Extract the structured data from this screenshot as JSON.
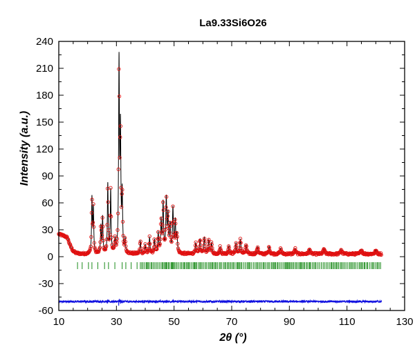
{
  "chart_data": {
    "type": "scatter",
    "title": "La9.33Si6O26",
    "xlabel": "2θ (°)",
    "ylabel": "Intensity (a.u.)",
    "xlim": [
      10,
      130
    ],
    "ylim": [
      -60,
      240
    ],
    "xticks": [
      10,
      30,
      50,
      70,
      90,
      110,
      130
    ],
    "yticks": [
      -60,
      -30,
      0,
      30,
      60,
      90,
      120,
      150,
      180,
      210,
      240
    ],
    "grid": false,
    "legend": "none",
    "x_range_measured": [
      10,
      122
    ],
    "background_points": [
      [
        10,
        25
      ],
      [
        11,
        24
      ],
      [
        12,
        23
      ],
      [
        13,
        21
      ],
      [
        14,
        12
      ],
      [
        15,
        6
      ],
      [
        16,
        4
      ],
      [
        18,
        3
      ],
      [
        20,
        3
      ],
      [
        25,
        3
      ],
      [
        30,
        3
      ],
      [
        40,
        3
      ],
      [
        50,
        3
      ],
      [
        60,
        3
      ],
      [
        70,
        3
      ],
      [
        80,
        3
      ],
      [
        90,
        3
      ],
      [
        100,
        3
      ],
      [
        110,
        3
      ],
      [
        122,
        3
      ]
    ],
    "peaks": [
      {
        "pos": 21.5,
        "height": 61
      },
      {
        "pos": 22.0,
        "height": 50
      },
      {
        "pos": 24.6,
        "height": 30
      },
      {
        "pos": 25.2,
        "height": 40
      },
      {
        "pos": 27.0,
        "height": 77
      },
      {
        "pos": 28.0,
        "height": 70
      },
      {
        "pos": 29.5,
        "height": 14
      },
      {
        "pos": 30.9,
        "height": 210
      },
      {
        "pos": 31.4,
        "height": 130
      },
      {
        "pos": 32.0,
        "height": 63
      },
      {
        "pos": 33.0,
        "height": 14
      },
      {
        "pos": 38.3,
        "height": 14
      },
      {
        "pos": 40.0,
        "height": 10
      },
      {
        "pos": 41.5,
        "height": 18
      },
      {
        "pos": 43.2,
        "height": 15
      },
      {
        "pos": 44.5,
        "height": 22
      },
      {
        "pos": 45.5,
        "height": 35
      },
      {
        "pos": 46.2,
        "height": 55
      },
      {
        "pos": 47.3,
        "height": 59
      },
      {
        "pos": 47.9,
        "height": 40
      },
      {
        "pos": 48.6,
        "height": 30
      },
      {
        "pos": 49.6,
        "height": 49
      },
      {
        "pos": 50.4,
        "height": 35
      },
      {
        "pos": 51.0,
        "height": 20
      },
      {
        "pos": 57.5,
        "height": 12
      },
      {
        "pos": 59.0,
        "height": 16
      },
      {
        "pos": 60.5,
        "height": 18
      },
      {
        "pos": 62.0,
        "height": 15
      },
      {
        "pos": 63.0,
        "height": 12
      },
      {
        "pos": 66.0,
        "height": 8
      },
      {
        "pos": 69.0,
        "height": 9
      },
      {
        "pos": 71.5,
        "height": 12
      },
      {
        "pos": 73.0,
        "height": 16
      },
      {
        "pos": 75.0,
        "height": 10
      },
      {
        "pos": 79.0,
        "height": 8
      },
      {
        "pos": 83.0,
        "height": 8
      },
      {
        "pos": 87.0,
        "height": 6
      },
      {
        "pos": 92.0,
        "height": 6
      },
      {
        "pos": 97.0,
        "height": 5
      },
      {
        "pos": 102.0,
        "height": 6
      },
      {
        "pos": 108.0,
        "height": 5
      },
      {
        "pos": 115.0,
        "height": 5
      },
      {
        "pos": 120.0,
        "height": 4
      }
    ],
    "bragg_y": -10,
    "bragg_range": [
      16.5,
      122
    ],
    "difference_offset": -50,
    "colors": {
      "observed": "#e01010",
      "calculated": "#000000",
      "bragg": "#188a18",
      "difference": "#1010e0",
      "axes": "#000000"
    }
  }
}
